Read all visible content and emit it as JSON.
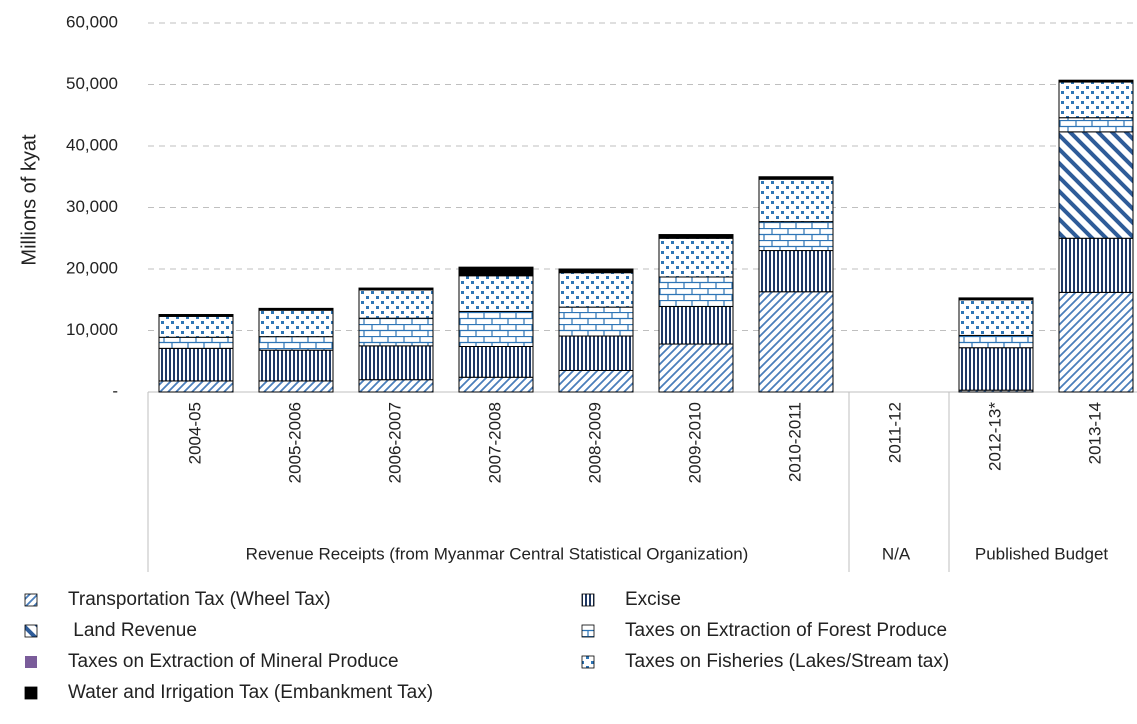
{
  "chart_data": {
    "type": "stacked_bar",
    "ylabel": "Millions of kyat",
    "categories": [
      "2004-05",
      "2005-2006",
      "2006-2007",
      "2007-2008",
      "2008-2009",
      "2009-2010",
      "2010-2011",
      "2011-12",
      "2012-13*",
      "2013-14"
    ],
    "groups": [
      {
        "label": "Revenue Receipts  (from Myanmar Central Statistical Organization)",
        "span": 7
      },
      {
        "label": "N/A",
        "span": 1
      },
      {
        "label": "Published Budget",
        "span": 2
      }
    ],
    "series": [
      {
        "name": "Transportation Tax (Wheel Tax)",
        "color": "#4a7ebb",
        "values": [
          1800,
          1800,
          2000,
          2400,
          3500,
          7800,
          16300,
          null,
          300,
          16200
        ]
      },
      {
        "name": "Excise",
        "color": "#1f3864",
        "values": [
          5300,
          5000,
          5500,
          5000,
          5600,
          6100,
          6700,
          null,
          6900,
          8800
        ]
      },
      {
        "name": " Land Revenue",
        "color": "#2e5c99",
        "values": [
          0,
          0,
          0,
          0,
          0,
          0,
          0,
          null,
          0,
          17300
        ]
      },
      {
        "name": "Taxes on Extraction of Forest Produce",
        "color": "#2e75b6",
        "values": [
          1800,
          2200,
          4500,
          5700,
          4700,
          4800,
          4700,
          null,
          2000,
          2300
        ]
      },
      {
        "name": "Taxes on Extraction of Mineral Produce",
        "color": "#7a5c9a",
        "values": [
          0,
          0,
          0,
          0,
          0,
          0,
          0,
          null,
          0,
          0
        ]
      },
      {
        "name": "Taxes on Fisheries (Lakes/Stream tax)",
        "color": "#2e75b6",
        "values": [
          3400,
          4300,
          4600,
          5800,
          5600,
          6300,
          6900,
          null,
          5800,
          5800
        ]
      },
      {
        "name": "Water and Irrigation Tax (Embankment Tax)",
        "color": "#000000",
        "values": [
          300,
          300,
          300,
          1400,
          600,
          600,
          400,
          null,
          300,
          300
        ]
      }
    ],
    "ylim": [
      0,
      60000
    ],
    "yticks": [
      {
        "value": 0,
        "label": "-"
      },
      {
        "value": 10000,
        "label": "10,000"
      },
      {
        "value": 20000,
        "label": "20,000"
      },
      {
        "value": 30000,
        "label": "30,000"
      },
      {
        "value": 40000,
        "label": "40,000"
      },
      {
        "value": 50000,
        "label": "50,000"
      },
      {
        "value": 60000,
        "label": "60,000"
      }
    ],
    "grid": true
  }
}
